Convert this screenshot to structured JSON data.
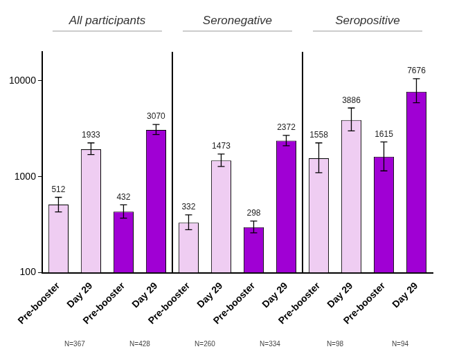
{
  "chart_data": {
    "type": "bar",
    "panel_titles": [
      "All participants",
      "Seronegative",
      "Seropositive"
    ],
    "categories": [
      "Pre-booster",
      "Day 29",
      "Pre-booster",
      "Day 29",
      "Pre-booster",
      "Day 29",
      "Pre-booster",
      "Day 29",
      "Pre-booster",
      "Day 29",
      "Pre-booster",
      "Day 29"
    ],
    "values": [
      512,
      1933,
      432,
      3070,
      332,
      1473,
      298,
      2372,
      1558,
      3886,
      1615,
      7676
    ],
    "error_low": [
      430,
      1700,
      370,
      2750,
      280,
      1280,
      260,
      2100,
      1100,
      3000,
      1150,
      5900
    ],
    "error_high": [
      610,
      2250,
      510,
      3500,
      400,
      1720,
      345,
      2700,
      2250,
      5200,
      2300,
      10500
    ],
    "colors": [
      "#efcdf2",
      "#efcdf2",
      "#a000d4",
      "#a000d4",
      "#efcdf2",
      "#efcdf2",
      "#a000d4",
      "#a000d4",
      "#efcdf2",
      "#efcdf2",
      "#a000d4",
      "#a000d4"
    ],
    "n_labels": [
      "N=367",
      "N=428",
      "N=260",
      "N=334",
      "N=98",
      "N=94"
    ],
    "ylim": [
      100,
      20000
    ],
    "yticks": [
      100,
      1000,
      10000
    ],
    "log": "y",
    "grid": false,
    "data_labels": true
  }
}
